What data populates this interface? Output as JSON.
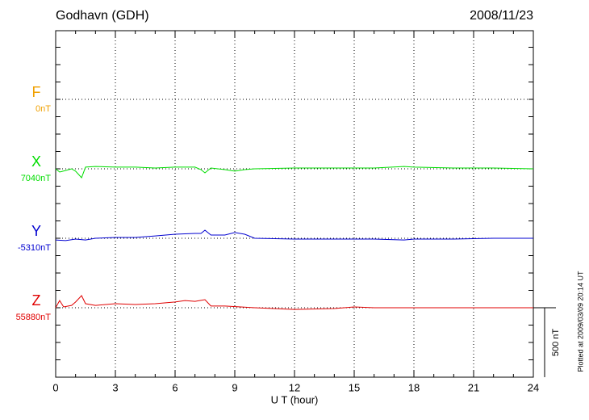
{
  "chart_data": {
    "type": "line",
    "title": "Godhavn (GDH)",
    "date": "2008/11/23",
    "x_label": "U T (hour)",
    "note": "Plotted at 2009/03/09 20:14 UT",
    "xlim": [
      0,
      24
    ],
    "xticks": [
      0,
      3,
      6,
      9,
      12,
      15,
      18,
      21,
      24
    ],
    "scale_bar": {
      "value": 500,
      "label": "500 nT"
    },
    "grid": true,
    "series": [
      {
        "name": "F",
        "baseline_label": "0nT",
        "color": "#f0a000",
        "x": [],
        "values": []
      },
      {
        "name": "X",
        "baseline_label": "7040nT",
        "color": "#00dd00",
        "x": [
          0,
          0.2,
          0.5,
          0.8,
          1.0,
          1.3,
          1.5,
          2,
          3,
          4,
          5,
          6,
          7,
          7.3,
          7.5,
          7.8,
          8.5,
          9,
          9.5,
          10,
          12,
          14,
          16,
          17.5,
          18,
          20,
          22,
          24
        ],
        "values": [
          0,
          -23,
          -12,
          0,
          -17,
          -64,
          12,
          17,
          12,
          12,
          6,
          12,
          12,
          -6,
          -29,
          6,
          -6,
          -17,
          -6,
          0,
          6,
          6,
          6,
          17,
          12,
          6,
          6,
          0
        ]
      },
      {
        "name": "Y",
        "baseline_label": "-5310nT",
        "color": "#0000d0",
        "x": [
          0,
          0.5,
          1,
          1.5,
          2,
          3,
          4,
          5,
          6,
          7,
          7.3,
          7.5,
          7.8,
          8.5,
          9,
          9.5,
          10,
          12,
          14,
          16,
          17.5,
          18,
          20,
          22,
          24
        ],
        "values": [
          -12,
          -17,
          -6,
          -12,
          0,
          6,
          6,
          17,
          29,
          35,
          35,
          58,
          23,
          23,
          41,
          29,
          0,
          -6,
          -6,
          -6,
          -12,
          -6,
          -6,
          0,
          0
        ]
      },
      {
        "name": "Z",
        "baseline_label": "55880nT",
        "color": "#e00000",
        "x": [
          0,
          0.2,
          0.4,
          0.8,
          1.0,
          1.3,
          1.5,
          2,
          3,
          4,
          5,
          6,
          6.5,
          7,
          7.5,
          7.8,
          8.5,
          10,
          12,
          14,
          15,
          16,
          18,
          20,
          22,
          24
        ],
        "values": [
          0,
          52,
          6,
          17,
          41,
          87,
          29,
          17,
          29,
          23,
          29,
          41,
          52,
          46,
          58,
          12,
          12,
          0,
          -12,
          -6,
          6,
          0,
          0,
          0,
          0,
          0
        ]
      }
    ]
  }
}
